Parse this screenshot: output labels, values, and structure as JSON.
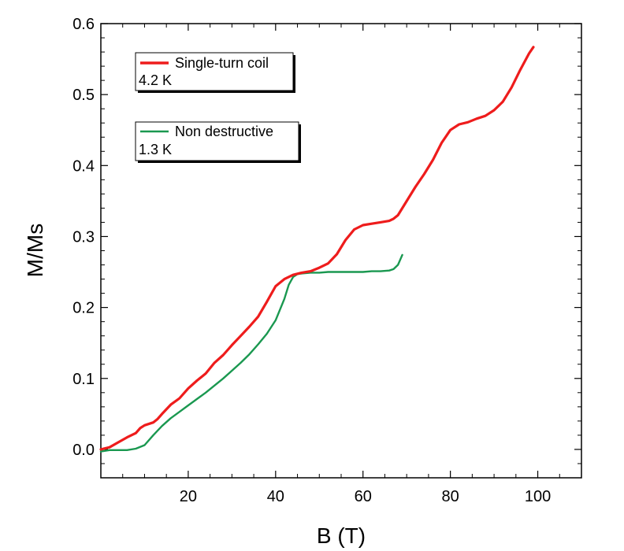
{
  "chart_data": {
    "type": "line",
    "xlabel": "B (T)",
    "ylabel": "M/Ms",
    "xlim": [
      0,
      110
    ],
    "ylim": [
      -0.04,
      0.6
    ],
    "x_ticks": [
      20,
      40,
      60,
      80,
      100
    ],
    "x_tick_labels": [
      "20",
      "40",
      "60",
      "80",
      "100"
    ],
    "y_ticks": [
      0.0,
      0.1,
      0.2,
      0.3,
      0.4,
      0.5,
      0.6
    ],
    "y_tick_labels": [
      "0.0",
      "0.1",
      "0.2",
      "0.3",
      "0.4",
      "0.5",
      "0.6"
    ],
    "grid": false,
    "series": [
      {
        "name": "Single-turn coil",
        "temperature": "4.2 K",
        "color": "#ee1c1c",
        "x": [
          0,
          2,
          4,
          6,
          8,
          9,
          10,
          12,
          13,
          14,
          16,
          18,
          20,
          22,
          24,
          26,
          28,
          30,
          32,
          34,
          36,
          38,
          40,
          42,
          44,
          46,
          48,
          50,
          52,
          54,
          56,
          58,
          60,
          62,
          64,
          66,
          67,
          68,
          70,
          72,
          74,
          76,
          78,
          80,
          82,
          84,
          86,
          88,
          90,
          92,
          94,
          96,
          98,
          99
        ],
        "y": [
          0.0,
          0.003,
          0.01,
          0.017,
          0.023,
          0.03,
          0.034,
          0.038,
          0.043,
          0.05,
          0.063,
          0.072,
          0.086,
          0.097,
          0.107,
          0.122,
          0.133,
          0.147,
          0.16,
          0.173,
          0.187,
          0.208,
          0.23,
          0.24,
          0.246,
          0.249,
          0.251,
          0.256,
          0.262,
          0.275,
          0.295,
          0.31,
          0.316,
          0.318,
          0.32,
          0.322,
          0.325,
          0.33,
          0.35,
          0.37,
          0.388,
          0.408,
          0.432,
          0.45,
          0.458,
          0.461,
          0.466,
          0.47,
          0.478,
          0.49,
          0.51,
          0.535,
          0.558,
          0.567
        ]
      },
      {
        "name": "Non destructive",
        "temperature": "1.3 K",
        "color": "#1a9850",
        "x": [
          0,
          2,
          4,
          6,
          8,
          10,
          12,
          14,
          16,
          18,
          20,
          22,
          24,
          26,
          28,
          30,
          32,
          34,
          36,
          38,
          40,
          42,
          43,
          44,
          45,
          46,
          48,
          50,
          52,
          55,
          58,
          60,
          62,
          64,
          66,
          67,
          68,
          69
        ],
        "y": [
          -0.003,
          -0.001,
          -0.001,
          -0.001,
          0.001,
          0.006,
          0.02,
          0.033,
          0.044,
          0.053,
          0.062,
          0.071,
          0.08,
          0.09,
          0.1,
          0.111,
          0.122,
          0.134,
          0.148,
          0.163,
          0.182,
          0.212,
          0.232,
          0.243,
          0.247,
          0.248,
          0.249,
          0.249,
          0.25,
          0.25,
          0.25,
          0.25,
          0.251,
          0.251,
          0.252,
          0.254,
          0.26,
          0.274
        ]
      }
    ]
  },
  "legend": {
    "entry1": {
      "series": "Single-turn coil",
      "sub": "4.2 K"
    },
    "entry2": {
      "series": "Non destructive",
      "sub": "1.3 K"
    }
  }
}
